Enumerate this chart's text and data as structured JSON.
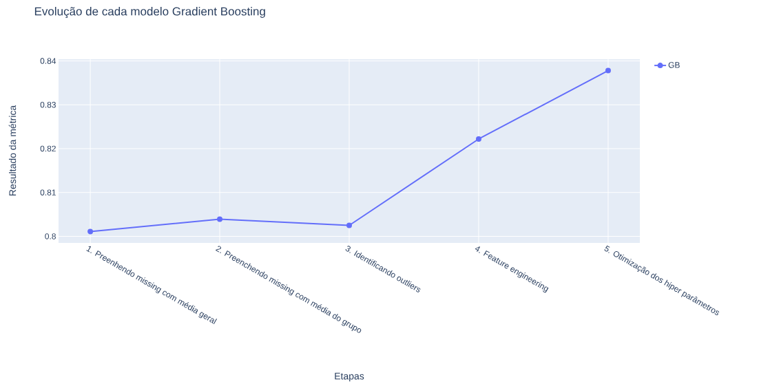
{
  "chart_data": {
    "type": "line",
    "title": "Evolução de cada modelo Gradient Boosting",
    "xlabel": "Etapas",
    "ylabel": "Resultado da métrica",
    "categories": [
      "1. Preenhendo missing com média geral",
      "2. Preenchendo missing com média do grupo",
      "3. Identificando outliers",
      "4. Feature engineering",
      "5. Otimização dos hiper parâmetros"
    ],
    "series": [
      {
        "name": "GB",
        "color": "#636efa",
        "values": [
          0.8011,
          0.8039,
          0.8025,
          0.8222,
          0.8378
        ]
      }
    ],
    "ylim": [
      0.7985,
      0.8404
    ],
    "yticks": [
      0.8,
      0.81,
      0.82,
      0.83,
      0.84
    ],
    "grid": true,
    "legend": "top right",
    "marker": "circle",
    "line_style": "solid"
  }
}
